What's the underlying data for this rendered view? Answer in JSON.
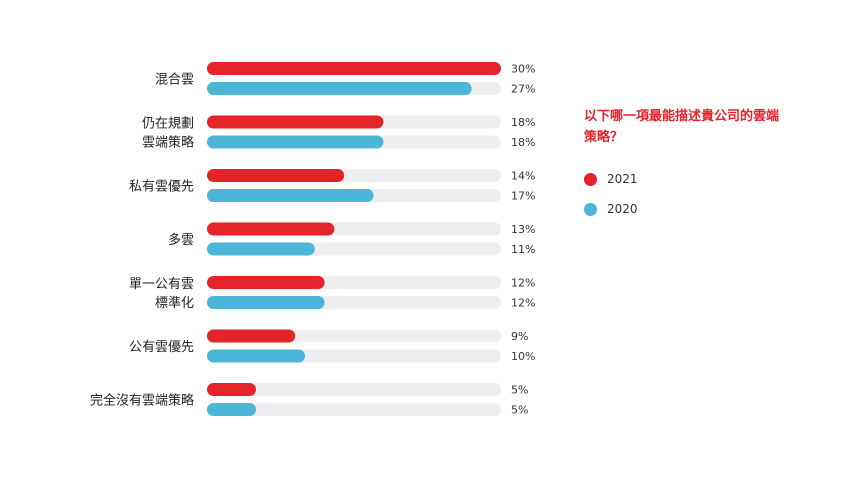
{
  "chart_data": {
    "type": "bar",
    "orientation": "horizontal",
    "title": "以下哪一項最能描述貴公司的雲端策略？",
    "categories": [
      [
        "混合雲"
      ],
      [
        "仍在規劃",
        "雲端策略"
      ],
      [
        "私有雲優先"
      ],
      [
        "多雲"
      ],
      [
        "單一公有雲",
        "標準化"
      ],
      [
        "公有雲優先"
      ],
      [
        "完全沒有雲端策略"
      ]
    ],
    "series": [
      {
        "name": "2021",
        "color": "#e5232b",
        "values": [
          30,
          18,
          14,
          13,
          12,
          9,
          5
        ]
      },
      {
        "name": "2020",
        "color": "#4bb6d8",
        "values": [
          27,
          18,
          17,
          11,
          12,
          10,
          5
        ]
      }
    ],
    "value_suffix": "%",
    "xlim": [
      0,
      30
    ],
    "legend_position": "right"
  },
  "colors": {
    "track": "#eeeef0"
  }
}
